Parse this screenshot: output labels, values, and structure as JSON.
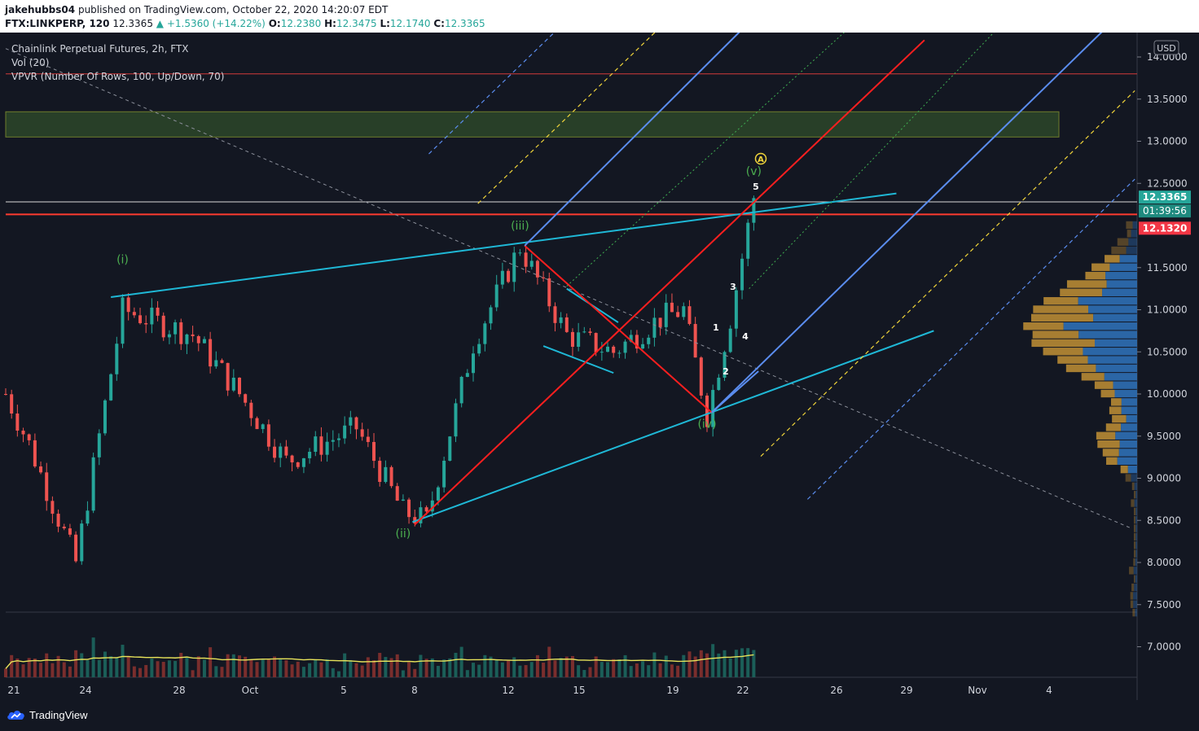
{
  "header": {
    "user": "jakehubbs04",
    "published": "published on TradingView.com, October 22, 2020 14:20:07 EDT",
    "ticker": "FTX:LINKPERP, 120",
    "last": "12.3365",
    "change": "▲ +1.5360 (+14.22%)",
    "o_label": "O:",
    "o_val": "12.2380",
    "h_label": "H:",
    "h_val": "12.3475",
    "l_label": "L:",
    "l_val": "12.1740",
    "c_label": "C:",
    "c_val": "12.3365"
  },
  "legend": {
    "title": "Chainlink Perpetual Futures, 2h, FTX",
    "vol": "Vol (20)",
    "vpvr": "VPVR (Number Of Rows, 100, Up/Down, 70)"
  },
  "price_axis": {
    "currency": "USD",
    "last_price": "12.3365",
    "countdown": "01:39:56",
    "red_level": "12.1320"
  },
  "footer": {
    "brand": "TradingView"
  },
  "colors": {
    "bg": "#131722",
    "up": "#26a69a",
    "down": "#ef5350",
    "red_line": "#ff1f1f",
    "cyan": "#1fb8d6",
    "blue": "#5b8def",
    "yellow": "#f0d43a",
    "green_label": "#4caf50",
    "zone": "#2e4a2a",
    "vp_up": "#2f6fb5",
    "vp_down": "#b88a34",
    "vol_ma": "#e8e35a"
  },
  "chart_data": {
    "type": "candlestick",
    "symbol": "FTX:LINKPERP",
    "interval": "2h",
    "y_ticks": [
      14.0,
      13.5,
      13.0,
      12.5,
      11.5,
      11.0,
      10.5,
      10.0,
      9.5,
      9.0,
      8.5,
      8.0,
      7.5,
      7.0
    ],
    "x_ticks": [
      "21",
      "24",
      "28",
      "Oct",
      "5",
      "8",
      "12",
      "15",
      "19",
      "22",
      "26",
      "29",
      "Nov",
      "4"
    ],
    "ylim": [
      6.5,
      14.2
    ],
    "price_path": [
      {
        "x": "Sep 20",
        "y": 10.0
      },
      {
        "x": "Sep 21",
        "y": 9.4
      },
      {
        "x": "Sep 23",
        "y": 8.0
      },
      {
        "x": "Sep 24",
        "y": 9.5
      },
      {
        "x": "Sep 25",
        "y": 11.0
      },
      {
        "x": "Sep 28",
        "y": 10.7
      },
      {
        "x": "Sep 30",
        "y": 10.0
      },
      {
        "x": "Oct 2",
        "y": 9.2
      },
      {
        "x": "Oct 5",
        "y": 9.6
      },
      {
        "x": "Oct 7",
        "y": 8.6
      },
      {
        "x": "Oct 8",
        "y": 8.5
      },
      {
        "x": "Oct 10",
        "y": 10.6
      },
      {
        "x": "Oct 12",
        "y": 11.75
      },
      {
        "x": "Oct 14",
        "y": 10.7
      },
      {
        "x": "Oct 16",
        "y": 10.5
      },
      {
        "x": "Oct 18",
        "y": 10.9
      },
      {
        "x": "Oct 19",
        "y": 11.0
      },
      {
        "x": "Oct 20",
        "y": 9.75
      },
      {
        "x": "Oct 21",
        "y": 10.9
      },
      {
        "x": "Oct 22",
        "y": 12.3365
      }
    ],
    "wave_labels": [
      {
        "text": "(i)",
        "x": "Sep 25",
        "y": 11.55
      },
      {
        "text": "(ii)",
        "x": "Oct 7",
        "y": 8.3
      },
      {
        "text": "(iii)",
        "x": "Oct 12",
        "y": 11.95
      },
      {
        "text": "(iv)",
        "x": "Oct 20",
        "y": 9.6
      },
      {
        "text": "(v)",
        "x": "Oct 22",
        "y": 12.6
      },
      {
        "text": "A",
        "x": "Oct 22",
        "y": 12.8
      }
    ],
    "sub_wave_labels": [
      "1",
      "2",
      "3",
      "4",
      "5"
    ],
    "horizontal_levels": [
      13.8,
      12.28,
      12.132
    ],
    "zone": [
      13.05,
      13.35
    ],
    "volume_ma_period": 20
  }
}
